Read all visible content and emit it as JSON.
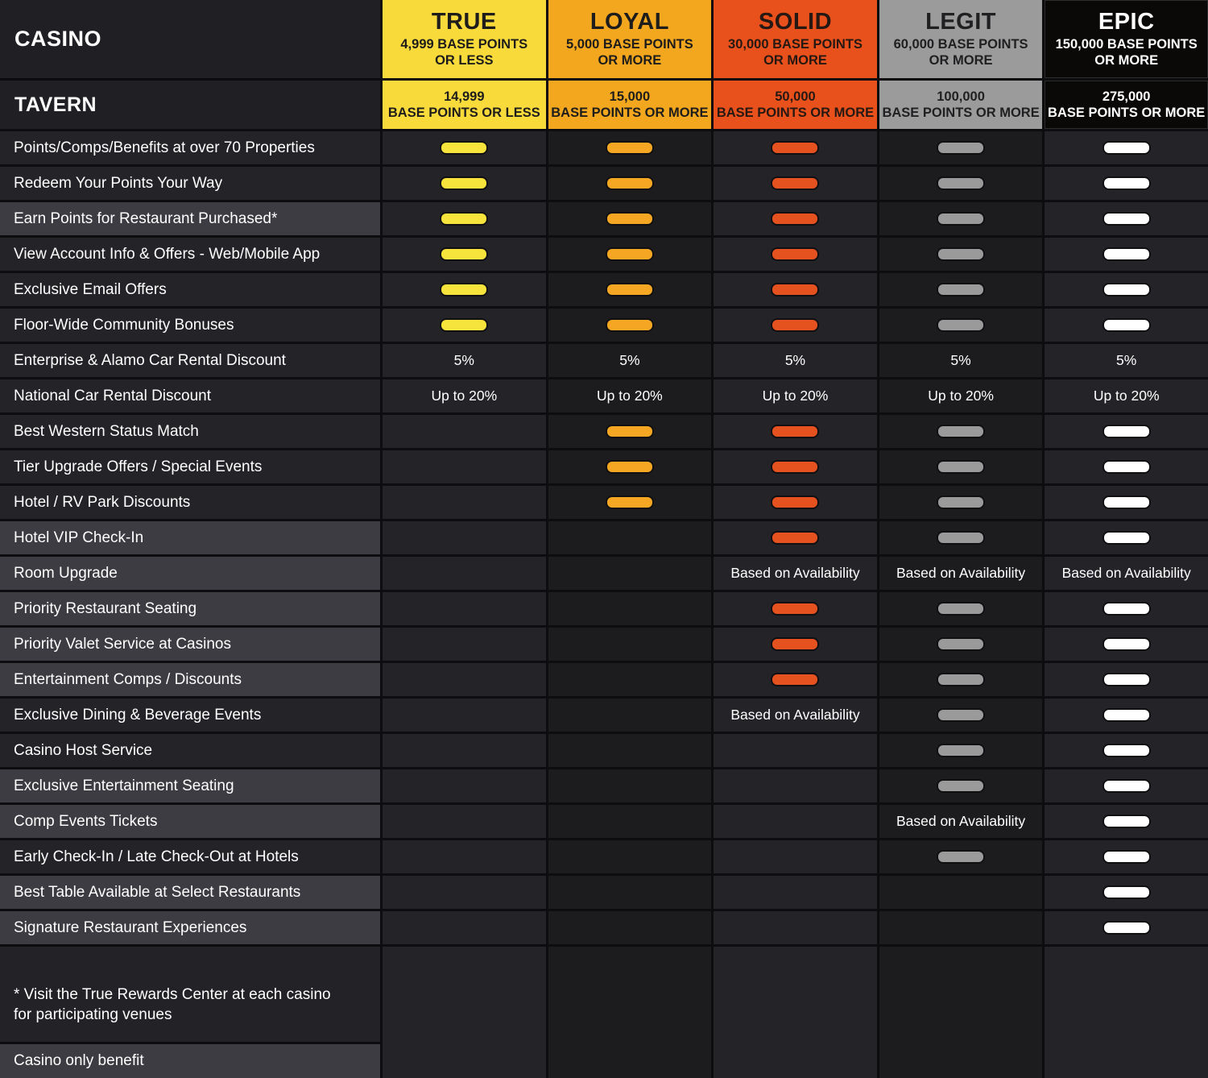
{
  "header": {
    "corner_row1": "CASINO",
    "corner_row2": "TAVERN"
  },
  "chart_data": {
    "type": "table",
    "title": "Casino / Tavern rewards tier benefits comparison",
    "tiers": [
      {
        "name": "TRUE",
        "casino_threshold": "4,999 BASE POINTS\nOR LESS",
        "tavern_threshold": "14,999\nBASE POINTS OR LESS",
        "color": "#f8da3b",
        "dash_color": "#f6e33b",
        "text_color": "#1e1d1b"
      },
      {
        "name": "LOYAL",
        "casino_threshold": "5,000 BASE POINTS\nOR MORE",
        "tavern_threshold": "15,000\nBASE POINTS OR MORE",
        "color": "#f2a71e",
        "dash_color": "#f5a724",
        "text_color": "#1e1d1b"
      },
      {
        "name": "SOLID",
        "casino_threshold": "30,000 BASE POINTS\nOR MORE",
        "tavern_threshold": "50,000\nBASE POINTS OR MORE",
        "color": "#e8501c",
        "dash_color": "#e6521f",
        "text_color": "#261812"
      },
      {
        "name": "LEGIT",
        "casino_threshold": "60,000 BASE POINTS\nOR MORE",
        "tavern_threshold": "100,000\nBASE POINTS OR MORE",
        "color": "#9b9b9b",
        "dash_color": "#9a9a9a",
        "text_color": "#202022"
      },
      {
        "name": "EPIC",
        "casino_threshold": "150,000 BASE POINTS\nOR MORE",
        "tavern_threshold": "275,000\nBASE POINTS OR MORE",
        "color": "#0a0908",
        "dash_color": "#ffffff",
        "text_color": "#ffffff"
      }
    ],
    "value_key": {
      "included": "dash indicator",
      "": "not included"
    },
    "benefits": [
      {
        "label": "Points/Comps/Benefits at over 70 Properties",
        "casino_only": false,
        "values": [
          "included",
          "included",
          "included",
          "included",
          "included"
        ]
      },
      {
        "label": "Redeem Your Points Your Way",
        "casino_only": false,
        "values": [
          "included",
          "included",
          "included",
          "included",
          "included"
        ]
      },
      {
        "label": "Earn Points for Restaurant Purchased*",
        "casino_only": true,
        "values": [
          "included",
          "included",
          "included",
          "included",
          "included"
        ]
      },
      {
        "label": "View Account Info & Offers - Web/Mobile App",
        "casino_only": false,
        "values": [
          "included",
          "included",
          "included",
          "included",
          "included"
        ]
      },
      {
        "label": "Exclusive Email Offers",
        "casino_only": false,
        "values": [
          "included",
          "included",
          "included",
          "included",
          "included"
        ]
      },
      {
        "label": "Floor-Wide Community Bonuses",
        "casino_only": false,
        "values": [
          "included",
          "included",
          "included",
          "included",
          "included"
        ]
      },
      {
        "label": "Enterprise & Alamo Car Rental Discount",
        "casino_only": false,
        "values": [
          "5%",
          "5%",
          "5%",
          "5%",
          "5%"
        ]
      },
      {
        "label": "National Car Rental Discount",
        "casino_only": false,
        "values": [
          "Up to 20%",
          "Up to 20%",
          "Up to 20%",
          "Up to 20%",
          "Up to 20%"
        ]
      },
      {
        "label": "Best Western Status Match",
        "casino_only": false,
        "values": [
          "",
          "included",
          "included",
          "included",
          "included"
        ]
      },
      {
        "label": "Tier Upgrade Offers / Special Events",
        "casino_only": false,
        "values": [
          "",
          "included",
          "included",
          "included",
          "included"
        ]
      },
      {
        "label": "Hotel / RV Park Discounts",
        "casino_only": false,
        "values": [
          "",
          "included",
          "included",
          "included",
          "included"
        ]
      },
      {
        "label": "Hotel VIP Check-In",
        "casino_only": true,
        "values": [
          "",
          "",
          "included",
          "included",
          "included"
        ]
      },
      {
        "label": "Room Upgrade",
        "casino_only": true,
        "values": [
          "",
          "",
          "Based on Availability",
          "Based on Availability",
          "Based on Availability"
        ]
      },
      {
        "label": "Priority Restaurant Seating",
        "casino_only": true,
        "values": [
          "",
          "",
          "included",
          "included",
          "included"
        ]
      },
      {
        "label": "Priority Valet Service at Casinos",
        "casino_only": true,
        "values": [
          "",
          "",
          "included",
          "included",
          "included"
        ]
      },
      {
        "label": "Entertainment Comps / Discounts",
        "casino_only": true,
        "values": [
          "",
          "",
          "included",
          "included",
          "included"
        ]
      },
      {
        "label": "Exclusive Dining & Beverage Events",
        "casino_only": false,
        "values": [
          "",
          "",
          "Based on Availability",
          "included",
          "included"
        ]
      },
      {
        "label": "Casino Host Service",
        "casino_only": false,
        "values": [
          "",
          "",
          "",
          "included",
          "included"
        ]
      },
      {
        "label": "Exclusive Entertainment Seating",
        "casino_only": true,
        "values": [
          "",
          "",
          "",
          "included",
          "included"
        ]
      },
      {
        "label": "Comp Events Tickets",
        "casino_only": true,
        "values": [
          "",
          "",
          "",
          "Based on Availability",
          "included"
        ]
      },
      {
        "label": "Early Check-In / Late Check-Out at Hotels",
        "casino_only": false,
        "values": [
          "",
          "",
          "",
          "included",
          "included"
        ]
      },
      {
        "label": "Best Table Available at Select Restaurants",
        "casino_only": true,
        "values": [
          "",
          "",
          "",
          "",
          "included"
        ]
      },
      {
        "label": "Signature Restaurant Experiences",
        "casino_only": true,
        "values": [
          "",
          "",
          "",
          "",
          "included"
        ]
      }
    ]
  },
  "footer": {
    "note": "* Visit the True Rewards Center at each casino\nfor participating venues",
    "legend": "Casino only benefit"
  }
}
